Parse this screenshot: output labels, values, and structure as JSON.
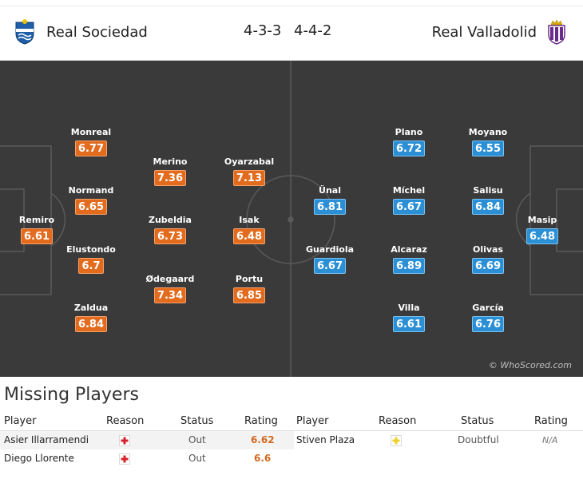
{
  "header": {
    "home_team": "Real Sociedad",
    "away_team": "Real Valladolid",
    "home_formation": "4-3-3",
    "away_formation": "4-4-2",
    "home_crest_icon": "real-sociedad-crest-icon",
    "away_crest_icon": "real-valladolid-crest-icon"
  },
  "pitch": {
    "watermark": "© WhoScored.com",
    "home_color": "#e26b1e",
    "away_color": "#2b8fd6",
    "home_players": [
      {
        "name": "Remiro",
        "rating": "6.61"
      },
      {
        "name": "Monreal",
        "rating": "6.77"
      },
      {
        "name": "Normand",
        "rating": "6.65"
      },
      {
        "name": "Elustondo",
        "rating": "6.7"
      },
      {
        "name": "Zaldua",
        "rating": "6.84"
      },
      {
        "name": "Merino",
        "rating": "7.36"
      },
      {
        "name": "Zubeldia",
        "rating": "6.73"
      },
      {
        "name": "Ødegaard",
        "rating": "7.34"
      },
      {
        "name": "Oyarzabal",
        "rating": "7.13"
      },
      {
        "name": "Isak",
        "rating": "6.48"
      },
      {
        "name": "Portu",
        "rating": "6.85"
      }
    ],
    "away_players": [
      {
        "name": "Ünal",
        "rating": "6.81"
      },
      {
        "name": "Guardiola",
        "rating": "6.67"
      },
      {
        "name": "Plano",
        "rating": "6.72"
      },
      {
        "name": "Míchel",
        "rating": "6.67"
      },
      {
        "name": "Alcaraz",
        "rating": "6.89"
      },
      {
        "name": "Villa",
        "rating": "6.61"
      },
      {
        "name": "Moyano",
        "rating": "6.55"
      },
      {
        "name": "Salisu",
        "rating": "6.84"
      },
      {
        "name": "Olivas",
        "rating": "6.69"
      },
      {
        "name": "García",
        "rating": "6.76"
      },
      {
        "name": "Masip",
        "rating": "6.48"
      }
    ]
  },
  "missing": {
    "title": "Missing Players",
    "columns": [
      "Player",
      "Reason",
      "Status",
      "Rating"
    ],
    "home": [
      {
        "player": "Asier Illarramendi",
        "reason_icon": "injury-cross-icon",
        "status": "Out",
        "rating": "6.62"
      },
      {
        "player": "Diego Llorente",
        "reason_icon": "injury-cross-icon",
        "status": "Out",
        "rating": "6.6"
      }
    ],
    "away": [
      {
        "player": "Stiven Plaza",
        "reason_icon": "doubtful-cross-icon",
        "status": "Doubtful",
        "rating": "N/A"
      }
    ]
  }
}
